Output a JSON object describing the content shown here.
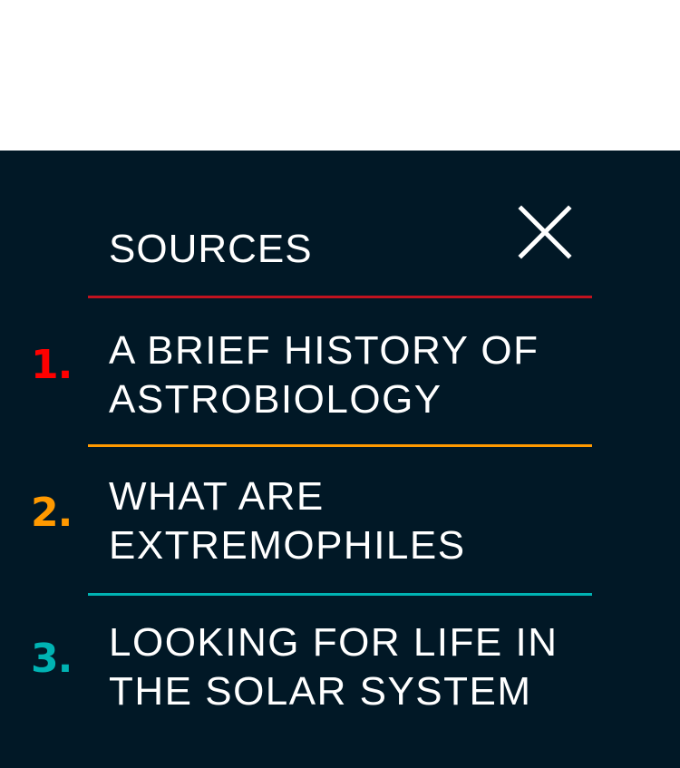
{
  "header": {
    "title": "SOURCES",
    "close_icon": "close-icon"
  },
  "colors": {
    "panel_background": "#011826",
    "item_1_accent": "#ff0000",
    "item_2_accent": "#ff9900",
    "item_3_accent": "#00b3b3",
    "header_divider": "#c1121f"
  },
  "sources": [
    {
      "number": "1.",
      "line1": "A BRIEF HISTORY OF",
      "line2": "ASTROBIOLOGY"
    },
    {
      "number": "2.",
      "line1": "WHAT ARE",
      "line2": "EXTREMOPHILES"
    },
    {
      "number": "3.",
      "line1": "LOOKING FOR LIFE IN",
      "line2": "THE SOLAR SYSTEM"
    }
  ]
}
